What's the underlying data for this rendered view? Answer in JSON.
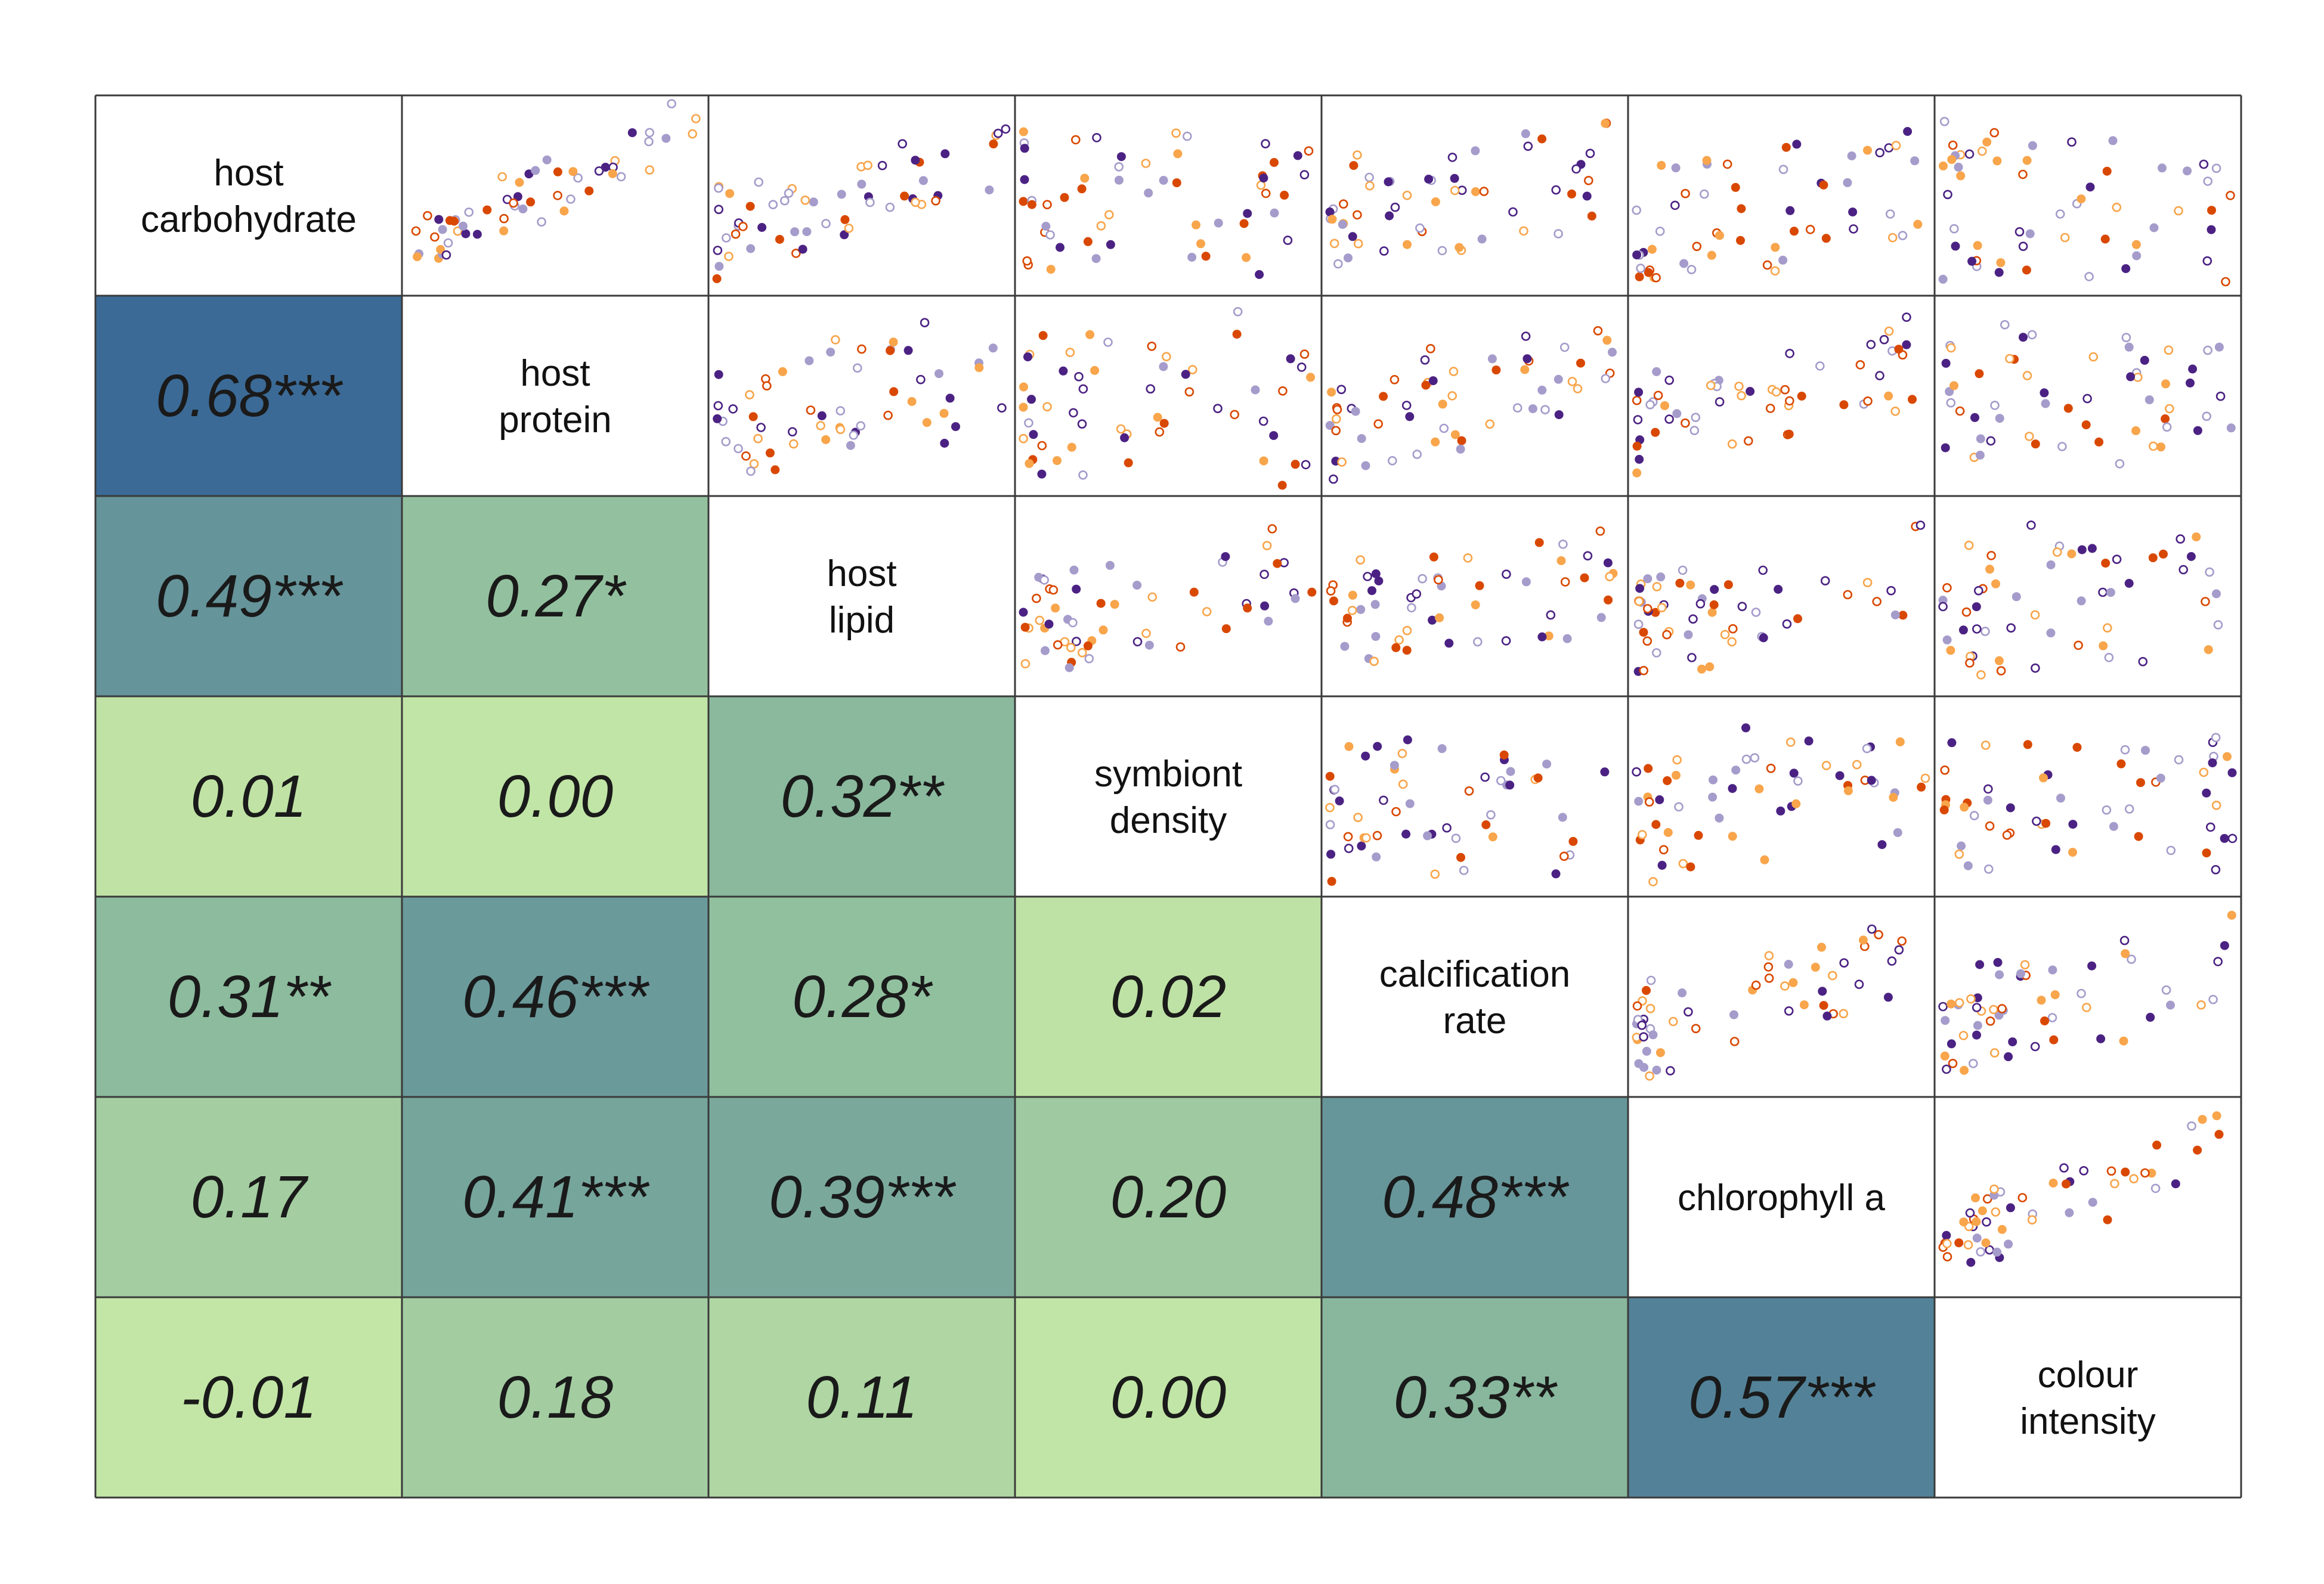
{
  "chart_data": {
    "type": "correlation-matrix",
    "title": "",
    "variables": [
      "host carbohydrate",
      "host protein",
      "host lipid",
      "symbiont density",
      "calcification rate",
      "chlorophyll a",
      "colour intensity"
    ],
    "variable_lines": [
      [
        "host",
        "carbohydrate"
      ],
      [
        "host",
        "protein"
      ],
      [
        "host",
        "lipid"
      ],
      [
        "symbiont",
        "density"
      ],
      [
        "calcification",
        "rate"
      ],
      [
        "chlorophyll a"
      ],
      [
        "colour",
        "intensity"
      ]
    ],
    "color_scale": {
      "low": "#c3e6a6",
      "mid": "#8ebd9e",
      "high": "#3b6a96"
    },
    "lower_triangle": [
      {
        "row": 1,
        "col": 0,
        "r": 0.68,
        "label": "0.68***"
      },
      {
        "row": 2,
        "col": 0,
        "r": 0.49,
        "label": "0.49***"
      },
      {
        "row": 2,
        "col": 1,
        "r": 0.27,
        "label": "0.27*"
      },
      {
        "row": 3,
        "col": 0,
        "r": 0.01,
        "label": "0.01"
      },
      {
        "row": 3,
        "col": 1,
        "r": 0.0,
        "label": "0.00"
      },
      {
        "row": 3,
        "col": 2,
        "r": 0.32,
        "label": "0.32**"
      },
      {
        "row": 4,
        "col": 0,
        "r": 0.31,
        "label": "0.31**"
      },
      {
        "row": 4,
        "col": 1,
        "r": 0.46,
        "label": "0.46***"
      },
      {
        "row": 4,
        "col": 2,
        "r": 0.28,
        "label": "0.28*"
      },
      {
        "row": 4,
        "col": 3,
        "r": 0.02,
        "label": "0.02"
      },
      {
        "row": 5,
        "col": 0,
        "r": 0.17,
        "label": "0.17"
      },
      {
        "row": 5,
        "col": 1,
        "r": 0.41,
        "label": "0.41***"
      },
      {
        "row": 5,
        "col": 2,
        "r": 0.39,
        "label": "0.39***"
      },
      {
        "row": 5,
        "col": 3,
        "r": 0.2,
        "label": "0.20"
      },
      {
        "row": 5,
        "col": 4,
        "r": 0.48,
        "label": "0.48***"
      },
      {
        "row": 6,
        "col": 0,
        "r": -0.01,
        "label": "-0.01"
      },
      {
        "row": 6,
        "col": 1,
        "r": 0.18,
        "label": "0.18"
      },
      {
        "row": 6,
        "col": 2,
        "r": 0.11,
        "label": "0.11"
      },
      {
        "row": 6,
        "col": 3,
        "r": 0.0,
        "label": "0.00"
      },
      {
        "row": 6,
        "col": 4,
        "r": 0.33,
        "label": "0.33**"
      },
      {
        "row": 6,
        "col": 5,
        "r": 0.57,
        "label": "0.57***"
      }
    ],
    "upper_triangle_type": "scatter",
    "point_groups": [
      {
        "color": "#4b2283",
        "filled": true
      },
      {
        "color": "#4b2283",
        "filled": false
      },
      {
        "color": "#a59ccb",
        "filled": true
      },
      {
        "color": "#a59ccb",
        "filled": false
      },
      {
        "color": "#d94801",
        "filled": true
      },
      {
        "color": "#d94801",
        "filled": false
      },
      {
        "color": "#f8a54b",
        "filled": true
      },
      {
        "color": "#f8a54b",
        "filled": false
      }
    ],
    "grid": false
  }
}
